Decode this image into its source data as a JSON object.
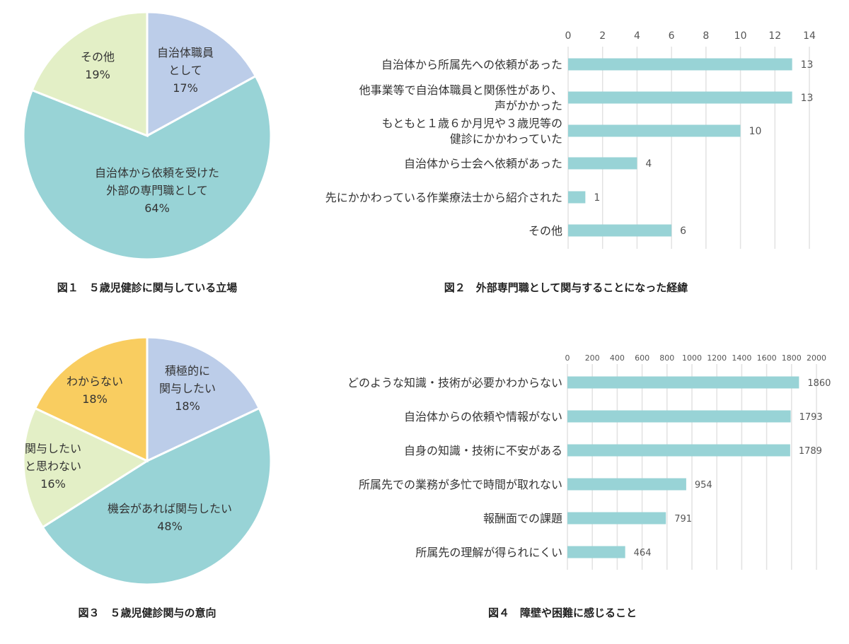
{
  "chart_data": [
    {
      "type": "pie",
      "title": "図１　５歳児健診に関与している立場",
      "slices": [
        {
          "label": [
            "自治体職員",
            "として"
          ],
          "value": 17,
          "pct_label": "17%",
          "color": "#bccde9"
        },
        {
          "label": [
            "自治体から依頼を受けた",
            "外部の専門職として"
          ],
          "value": 64,
          "pct_label": "64%",
          "color": "#98d3d6"
        },
        {
          "label": [
            "その他"
          ],
          "value": 19,
          "pct_label": "19%",
          "color": "#e3efc6"
        }
      ]
    },
    {
      "type": "bar",
      "orientation": "horizontal",
      "title": "図２　外部専門職として関与することになった経緯",
      "categories": [
        [
          "自治体から所属先への依頼があった"
        ],
        [
          "他事業等で自治体職員と関係性があり、",
          "声がかかった"
        ],
        [
          "もともと１歳６か月児や３歳児等の",
          "健診にかかわっていた"
        ],
        [
          "自治体から士会へ依頼があった"
        ],
        [
          "先にかかわっている作業療法士から紹介された"
        ],
        [
          "その他"
        ]
      ],
      "values": [
        13,
        13,
        10,
        4,
        1,
        6
      ],
      "xlim": [
        0,
        14
      ],
      "ticks": [
        0,
        2,
        4,
        6,
        8,
        10,
        12,
        14
      ],
      "grid": true,
      "color": "#98d3d6"
    },
    {
      "type": "pie",
      "title": "図３　５歳児健診関与の意向",
      "slices": [
        {
          "label": [
            "積極的に",
            "関与したい"
          ],
          "value": 18,
          "pct_label": "18%",
          "color": "#bccde9"
        },
        {
          "label": [
            "機会があれば関与したい"
          ],
          "value": 48,
          "pct_label": "48%",
          "color": "#98d3d6"
        },
        {
          "label": [
            "関与したい",
            "と思わない"
          ],
          "value": 16,
          "pct_label": "16%",
          "color": "#e3efc6"
        },
        {
          "label": [
            "わからない"
          ],
          "value": 18,
          "pct_label": "18%",
          "color": "#f9cd60"
        }
      ]
    },
    {
      "type": "bar",
      "orientation": "horizontal",
      "title": "図４　障壁や困難に感じること",
      "categories": [
        [
          "どのような知識・技術が必要かわからない"
        ],
        [
          "自治体からの依頼や情報がない"
        ],
        [
          "自身の知識・技術に不安がある"
        ],
        [
          "所属先での業務が多忙で時間が取れない"
        ],
        [
          "報酬面での課題"
        ],
        [
          "所属先の理解が得られにくい"
        ]
      ],
      "values": [
        1860,
        1793,
        1789,
        954,
        791,
        464
      ],
      "xlim": [
        0,
        2000
      ],
      "ticks": [
        0,
        200,
        400,
        600,
        800,
        1000,
        1200,
        1400,
        1600,
        1800,
        2000
      ],
      "grid": true,
      "color": "#98d3d6"
    }
  ]
}
